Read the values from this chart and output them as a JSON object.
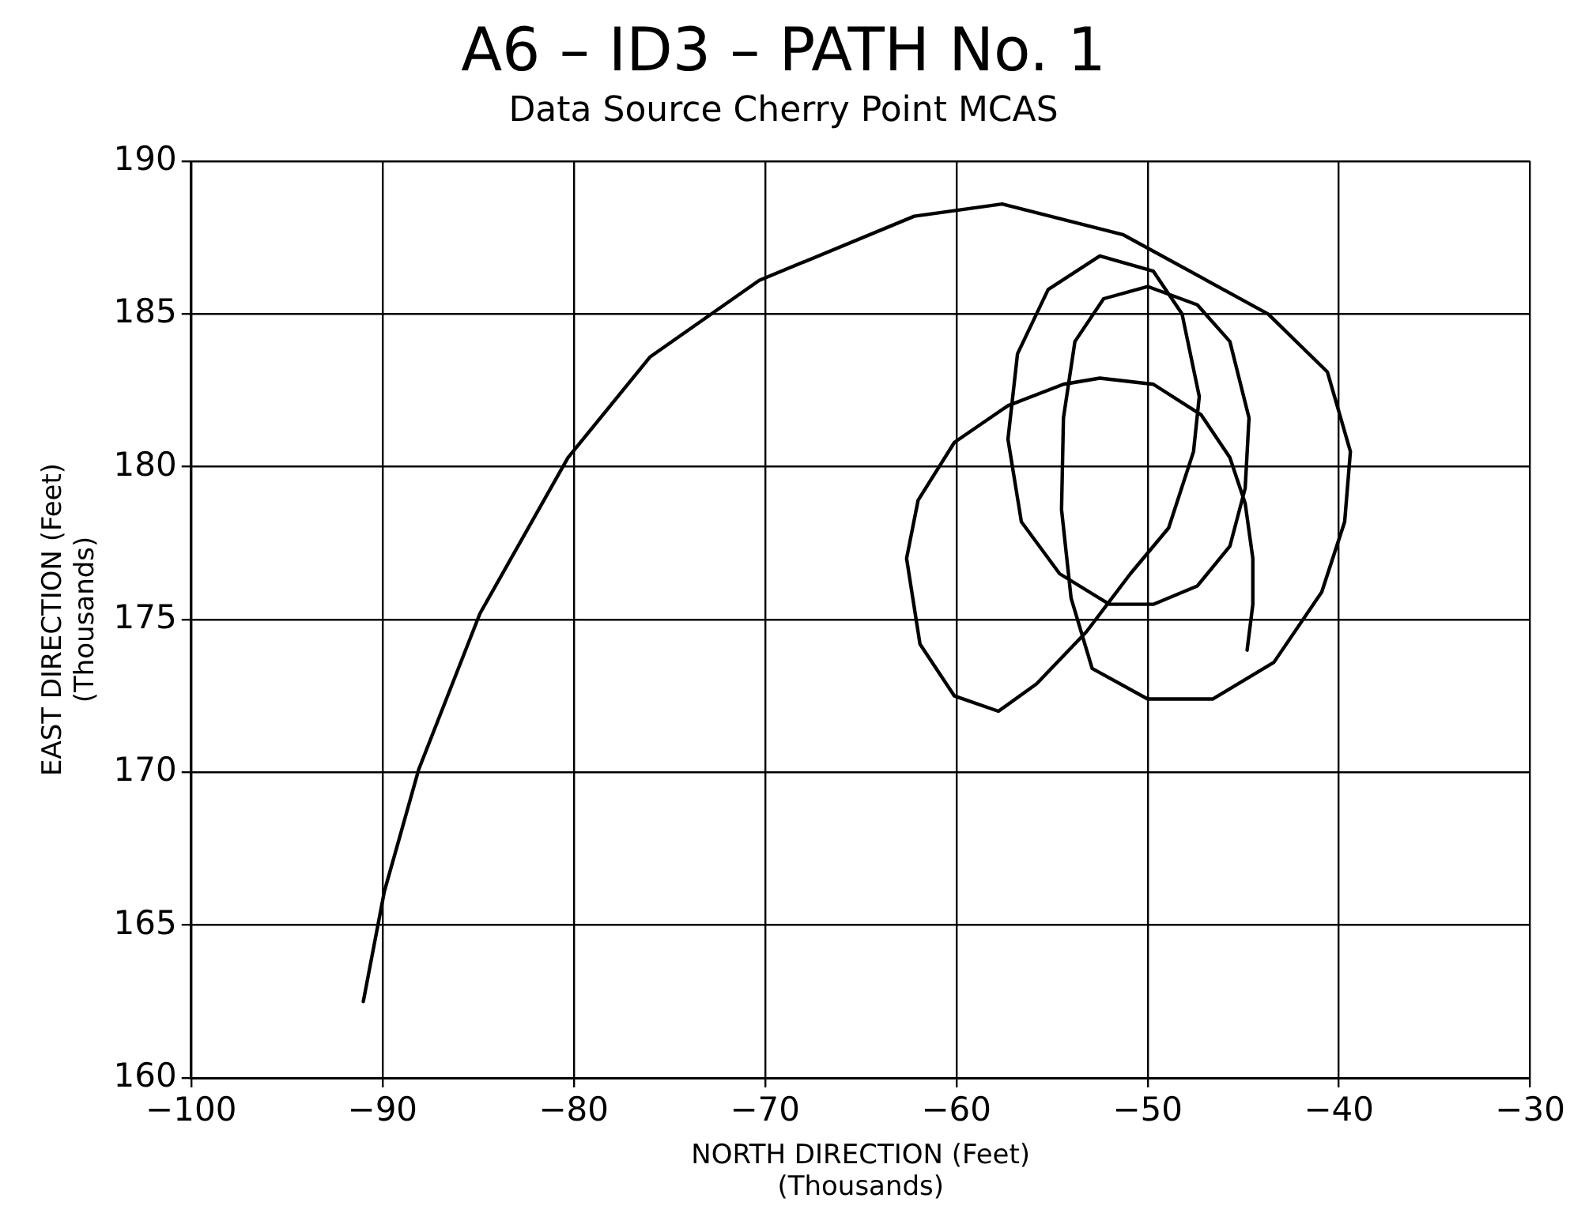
{
  "chart_data": {
    "type": "line",
    "title": "A6 – ID3 – PATH No. 1",
    "subtitle": "Data Source Cherry Point MCAS",
    "xlabel": "NORTH DIRECTION (Feet)\n(Thousands)",
    "ylabel": "EAST DIRECTION (Feet)\n(Thousands)",
    "x": [
      -91.0,
      -89.9,
      -88.1,
      -84.9,
      -80.3,
      -76.0,
      -70.3,
      -62.2,
      -57.6,
      -51.3,
      -43.7,
      -40.6,
      -39.4,
      -39.7,
      -40.9,
      -43.4,
      -46.6,
      -50.0,
      -52.9,
      -54.0,
      -54.5,
      -54.4,
      -53.8,
      -52.3,
      -50.0,
      -47.4,
      -45.7,
      -44.7,
      -44.9,
      -45.7,
      -47.4,
      -49.7,
      -52.0,
      -54.6,
      -56.6,
      -57.3,
      -56.8,
      -55.2,
      -52.5,
      -49.7,
      -48.2,
      -47.3,
      -47.6,
      -48.9,
      -50.9,
      -53.2,
      -55.8,
      -57.8,
      -60.1,
      -61.9,
      -62.6,
      -62.0,
      -60.1,
      -57.3,
      -54.4,
      -52.5,
      -49.7,
      -47.2,
      -45.7,
      -44.9,
      -44.5,
      -44.5,
      -44.8
    ],
    "values": [
      162.5,
      166.1,
      170.1,
      175.2,
      180.3,
      183.6,
      186.1,
      188.2,
      188.6,
      187.6,
      185.0,
      183.1,
      180.5,
      178.2,
      175.9,
      173.6,
      172.4,
      172.4,
      173.4,
      175.7,
      178.6,
      181.6,
      184.1,
      185.5,
      185.9,
      185.3,
      184.1,
      181.6,
      179.3,
      177.4,
      176.1,
      175.5,
      175.5,
      176.5,
      178.2,
      180.9,
      183.7,
      185.8,
      186.9,
      186.4,
      185.0,
      182.3,
      180.5,
      178.0,
      176.5,
      174.6,
      172.9,
      172.0,
      172.5,
      174.2,
      177.0,
      178.9,
      180.8,
      182.0,
      182.7,
      182.9,
      182.7,
      181.7,
      180.3,
      178.8,
      177.0,
      175.5,
      174.0
    ],
    "color": "#000000",
    "xlim": [
      -100,
      -30
    ],
    "xticks": [
      -100,
      -90,
      -80,
      -70,
      -60,
      -50,
      -40,
      -30
    ],
    "ylim": [
      160,
      190
    ],
    "yticks": [
      160,
      165,
      170,
      175,
      180,
      185,
      190
    ],
    "grid": true,
    "marker": "none",
    "line_style": "solid"
  }
}
